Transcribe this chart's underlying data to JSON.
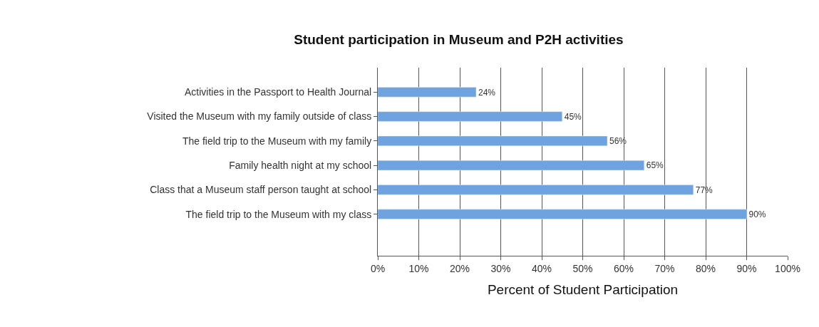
{
  "chart_data": {
    "type": "bar",
    "orientation": "horizontal",
    "title": "Student participation in Museum and P2H activities",
    "xlabel": "Percent of Student Participation",
    "categories": [
      "Activities in the Passport to Health Journal",
      "Visited the Museum with my family outside of class",
      "The field trip to the Museum with my family",
      "Family health night at my school",
      "Class that a Museum staff person taught at school",
      "The field trip to the Museum with my class"
    ],
    "values": [
      24,
      45,
      56,
      65,
      77,
      90
    ],
    "value_labels": [
      "24%",
      "45%",
      "56%",
      "65%",
      "77%",
      "90%"
    ],
    "color": "#6fa3e0",
    "xlim": [
      0,
      100
    ],
    "xticks": [
      {
        "value": 0,
        "label": "0%"
      },
      {
        "value": 10,
        "label": "10%"
      },
      {
        "value": 20,
        "label": "20%"
      },
      {
        "value": 30,
        "label": "30%"
      },
      {
        "value": 40,
        "label": "40%"
      },
      {
        "value": 50,
        "label": "50%"
      },
      {
        "value": 60,
        "label": "60%"
      },
      {
        "value": 70,
        "label": "70%"
      },
      {
        "value": 80,
        "label": "80%"
      },
      {
        "value": 90,
        "label": "90%"
      },
      {
        "value": 100,
        "label": "100%"
      }
    ],
    "grid": "x",
    "legend": false
  }
}
